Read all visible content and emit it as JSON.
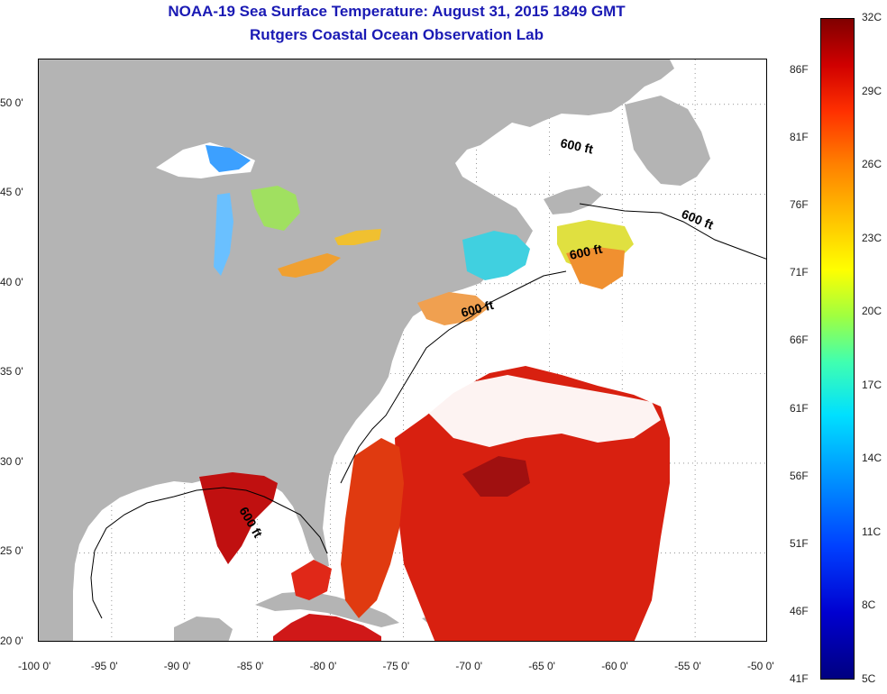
{
  "title": {
    "line1": "NOAA-19 Sea Surface Temperature:  August 31, 2015 1849 GMT",
    "line2": "Rutgers Coastal Ocean Observation Lab"
  },
  "map": {
    "lon_range": [
      -100,
      -50
    ],
    "lat_range": [
      20,
      52.5
    ],
    "lon_ticks": [
      "-100 0'",
      "-95 0'",
      "-90 0'",
      "-85 0'",
      "-80 0'",
      "-75 0'",
      "-70 0'",
      "-65 0'",
      "-60 0'",
      "-55 0'",
      "-50 0'"
    ],
    "lat_ticks": [
      "50 0'",
      "45 0'",
      "40 0'",
      "35 0'",
      "30 0'",
      "25 0'",
      "20 0'"
    ],
    "contour_labels": [
      "600 ft",
      "600 ft",
      "600 ft",
      "600 ft"
    ],
    "land_color": "#b4b4b4",
    "ocean_color": "#ffffff"
  },
  "colorbar": {
    "celsius": [
      "32C",
      "29C",
      "26C",
      "23C",
      "20C",
      "17C",
      "14C",
      "11C",
      "8C",
      "5C"
    ],
    "fahrenheit": [
      "86F",
      "81F",
      "76F",
      "71F",
      "66F",
      "61F",
      "56F",
      "51F",
      "46F",
      "41F"
    ]
  }
}
